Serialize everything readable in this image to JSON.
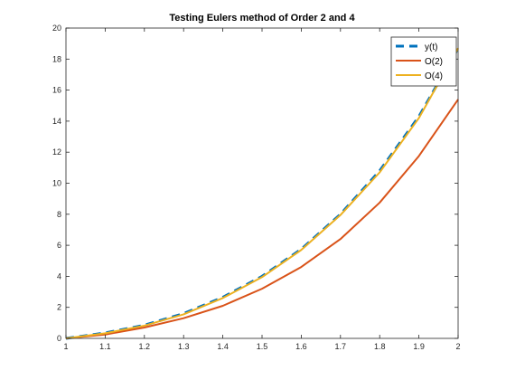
{
  "chart_data": {
    "type": "line",
    "title": "Testing Eulers method of Order 2 and 4",
    "xlabel": "",
    "ylabel": "",
    "xlim": [
      1,
      2
    ],
    "ylim": [
      0,
      20
    ],
    "xticks": [
      "1",
      "1.1",
      "1.2",
      "1.3",
      "1.4",
      "1.5",
      "1.6",
      "1.7",
      "1.8",
      "1.9",
      "2"
    ],
    "yticks": [
      "0",
      "2",
      "4",
      "6",
      "8",
      "10",
      "12",
      "14",
      "16",
      "18",
      "20"
    ],
    "grid": false,
    "legend_position": "top-right",
    "x": [
      1.0,
      1.1,
      1.2,
      1.3,
      1.4,
      1.5,
      1.6,
      1.7,
      1.8,
      1.9,
      2.0
    ],
    "series": [
      {
        "name": "y(t)",
        "color": "#0072BD",
        "style": "dashed",
        "values": [
          0.0,
          0.35,
          0.85,
          1.6,
          2.65,
          4.0,
          5.75,
          8.0,
          10.8,
          14.3,
          18.7
        ]
      },
      {
        "name": "O(2)",
        "color": "#D95319",
        "style": "solid",
        "values": [
          0.0,
          0.25,
          0.7,
          1.3,
          2.1,
          3.2,
          4.6,
          6.4,
          8.75,
          11.75,
          15.4
        ]
      },
      {
        "name": "O(4)",
        "color": "#EDB120",
        "style": "solid",
        "values": [
          0.0,
          0.33,
          0.82,
          1.55,
          2.6,
          3.95,
          5.7,
          7.95,
          10.7,
          14.2,
          18.7
        ]
      }
    ]
  }
}
